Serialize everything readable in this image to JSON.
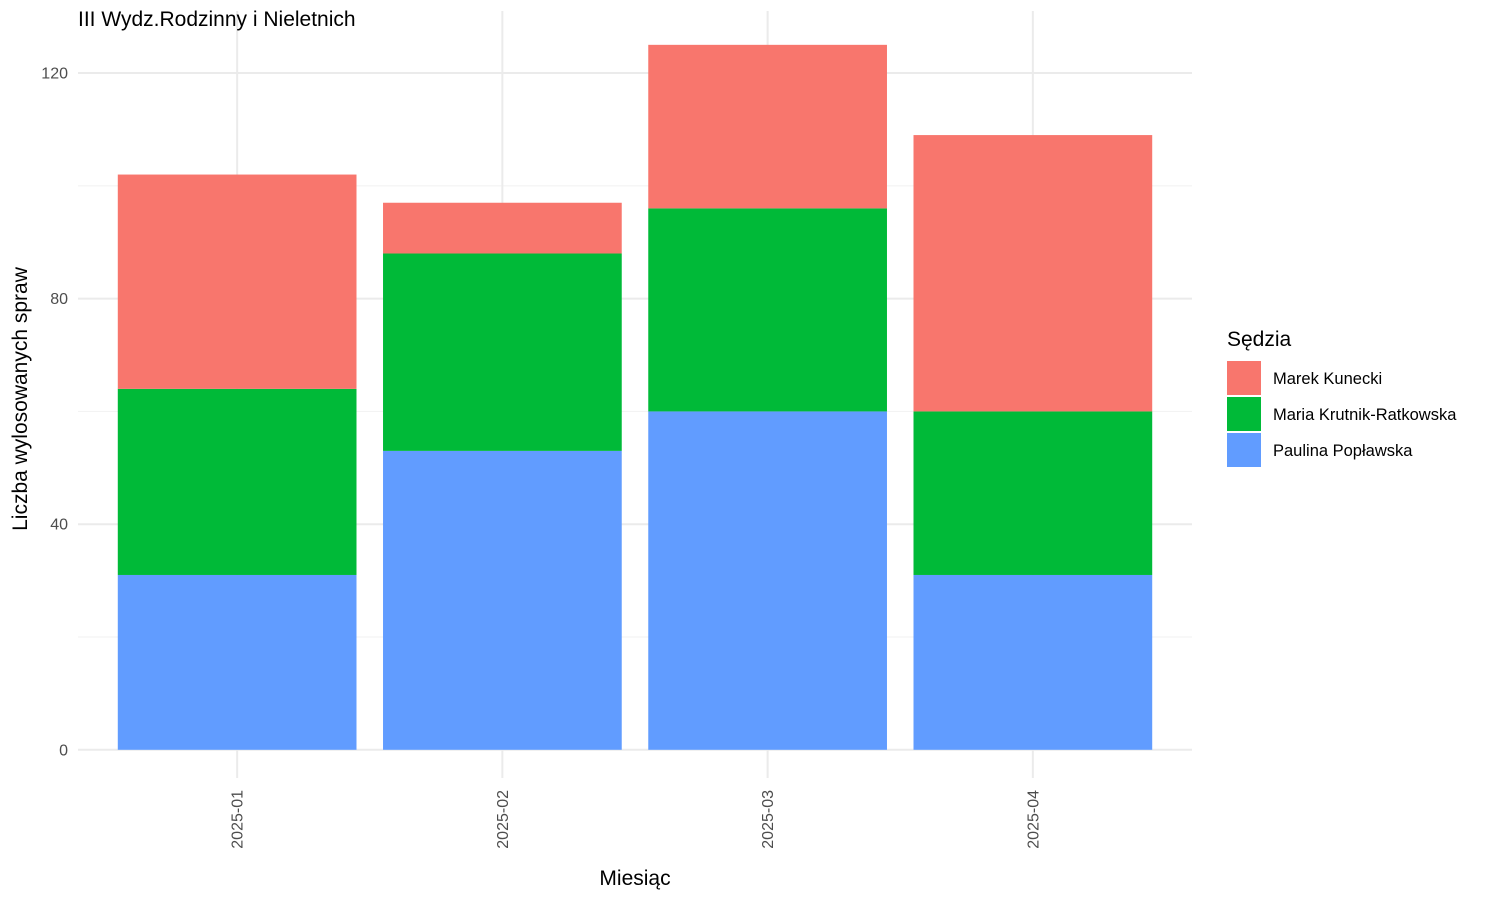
{
  "chart_data": {
    "type": "bar",
    "stacked": true,
    "title": "III Wydz.Rodzinny i Nieletnich",
    "xlabel": "Miesiąc",
    "ylabel": "Liczba wylosowanych spraw",
    "categories": [
      "2025-01",
      "2025-02",
      "2025-03",
      "2025-04"
    ],
    "series": [
      {
        "name": "Paulina Popławska",
        "color": "#619CFF",
        "values": [
          31,
          53,
          60,
          31
        ]
      },
      {
        "name": "Maria Krutnik-Ratkowska",
        "color": "#00BA38",
        "values": [
          33,
          35,
          36,
          29
        ]
      },
      {
        "name": "Marek Kunecki",
        "color": "#F8766D",
        "values": [
          38,
          9,
          29,
          49
        ]
      }
    ],
    "ylim": [
      -5,
      131
    ],
    "yticks": [
      0,
      40,
      80,
      120
    ],
    "y_minor_ticks": [
      20,
      60,
      100
    ],
    "grid": true,
    "legend": {
      "title": "Sędzia",
      "placement": "right",
      "order": [
        "Marek Kunecki",
        "Maria Krutnik-Ratkowska",
        "Paulina Popławska"
      ]
    },
    "x_tick_rotation": "vertical",
    "theme": "minimal"
  }
}
